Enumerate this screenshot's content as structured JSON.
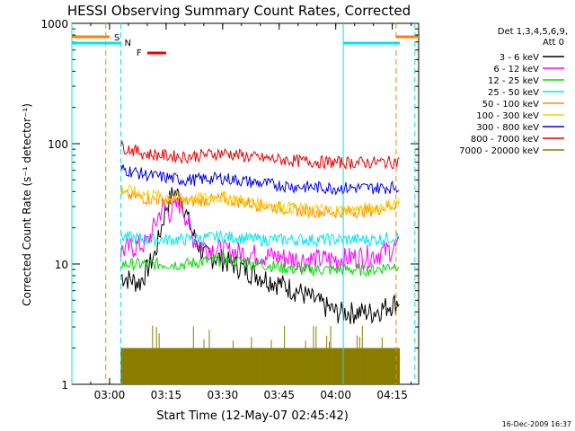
{
  "chart_data": {
    "type": "line",
    "title": "HESSI Observing Summary Count Rates, Corrected",
    "xlabel": "Start Time (12-May-07 02:45:42)",
    "ylabel": "Corrected Count Rate (s⁻¹ detector⁻¹)",
    "yscale": "log",
    "ylim": [
      1,
      1000
    ],
    "xlim": [
      "02:50",
      "04:22"
    ],
    "x_ticks": [
      "03:00",
      "03:15",
      "03:30",
      "03:45",
      "04:00",
      "04:15"
    ],
    "y_ticks": [
      "1",
      "10",
      "100",
      "1000"
    ],
    "legend_header": [
      "Det 1,3,4,5,6,9,",
      "Att 0"
    ],
    "legend_position": "top-right",
    "timestamp": "16-Dec-2009 16:37",
    "flags": {
      "s_label": "S",
      "n_label": "N",
      "f_label": "F",
      "s_color": "#ff7f00",
      "n_color": "#00e5ee",
      "f_color": "#ee0000",
      "s_segments": [
        [
          "02:50",
          "03:00"
        ],
        [
          "04:16",
          "04:22"
        ]
      ],
      "n_segments": [
        [
          "02:50",
          "03:03"
        ],
        [
          "04:02",
          "04:17"
        ]
      ],
      "f_segment": [
        "03:10",
        "03:15"
      ],
      "orange_vlines": [
        "02:59",
        "04:16"
      ],
      "cyan_vlines": [
        "02:50",
        "03:03",
        "04:02",
        "04:21"
      ]
    },
    "series": [
      {
        "name": "3 - 6 keV",
        "color": "#000000",
        "x": [
          "03:03",
          "03:08",
          "03:12",
          "03:15",
          "03:17",
          "03:19",
          "03:22",
          "03:25",
          "03:30",
          "03:40",
          "03:50",
          "04:00",
          "04:10",
          "04:17"
        ],
        "y": [
          8,
          7,
          12,
          30,
          40,
          36,
          18,
          12,
          11,
          8,
          6,
          4,
          4,
          5
        ]
      },
      {
        "name": "6 - 12 keV",
        "color": "#ff00ff",
        "x": [
          "03:03",
          "03:10",
          "03:14",
          "03:16",
          "03:19",
          "03:22",
          "03:25",
          "03:30",
          "03:40",
          "03:50",
          "04:00",
          "04:10",
          "04:17"
        ],
        "y": [
          13,
          15,
          30,
          27,
          33,
          17,
          14,
          13,
          12,
          11,
          11,
          12,
          14
        ]
      },
      {
        "name": "12 - 25 keV",
        "color": "#00dd00",
        "x": [
          "03:03",
          "03:10",
          "03:20",
          "03:30",
          "03:40",
          "03:50",
          "04:00",
          "04:10",
          "04:17"
        ],
        "y": [
          10,
          10,
          10,
          11,
          10,
          9,
          9,
          9,
          10
        ]
      },
      {
        "name": "25 - 50 keV",
        "color": "#00e5ee",
        "x": [
          "03:03",
          "03:10",
          "03:20",
          "03:30",
          "03:40",
          "03:50",
          "04:00",
          "04:10",
          "04:17"
        ],
        "y": [
          17,
          16,
          16,
          17,
          16,
          16,
          16,
          16,
          17
        ]
      },
      {
        "name": "50 - 100 keV",
        "color": "#ff8c00",
        "x": [
          "03:03",
          "03:10",
          "03:20",
          "03:30",
          "03:40",
          "03:50",
          "04:00",
          "04:10",
          "04:17"
        ],
        "y": [
          38,
          35,
          33,
          35,
          31,
          28,
          27,
          28,
          32
        ]
      },
      {
        "name": "100 - 300 keV",
        "color": "#ffd000",
        "x": [
          "03:03",
          "03:10",
          "03:20",
          "03:30",
          "03:40",
          "03:50",
          "04:00",
          "04:10",
          "04:17"
        ],
        "y": [
          42,
          38,
          35,
          36,
          32,
          29,
          28,
          29,
          33
        ]
      },
      {
        "name": "300 - 800 keV",
        "color": "#0000ee",
        "x": [
          "03:03",
          "03:10",
          "03:20",
          "03:30",
          "03:40",
          "03:50",
          "04:00",
          "04:10",
          "04:17"
        ],
        "y": [
          62,
          55,
          50,
          52,
          47,
          44,
          43,
          43,
          44
        ]
      },
      {
        "name": "800 - 7000 keV",
        "color": "#ee0000",
        "x": [
          "03:03",
          "03:10",
          "03:20",
          "03:30",
          "03:40",
          "03:50",
          "04:00",
          "04:10",
          "04:17"
        ],
        "y": [
          95,
          82,
          78,
          84,
          76,
          72,
          70,
          70,
          71
        ]
      },
      {
        "name": "7000 - 20000 keV",
        "color": "#8b7d00",
        "x": [
          "03:03",
          "04:17"
        ],
        "y": [
          2,
          2
        ]
      }
    ]
  }
}
